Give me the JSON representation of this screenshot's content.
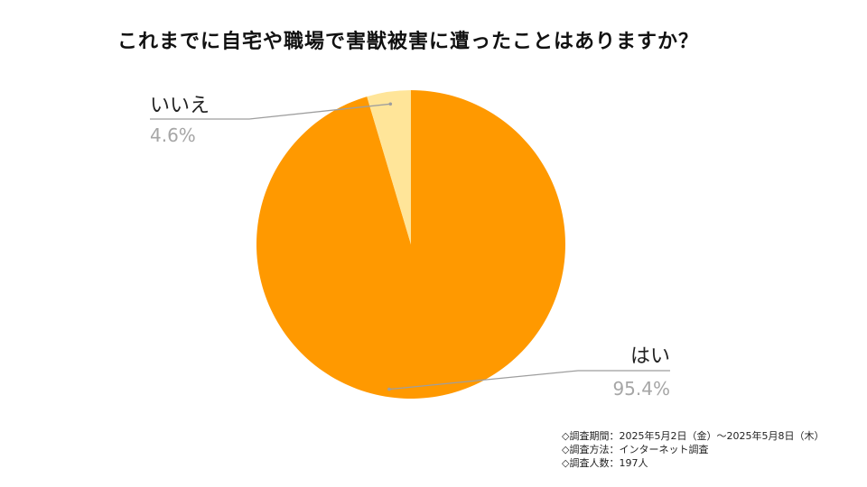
{
  "title": "これまでに自宅や職場で害獣被害に遭ったことはありますか？",
  "chart_data": {
    "type": "pie",
    "title": "これまでに自宅や職場で害獣被害に遭ったことはありますか？",
    "slices": [
      {
        "label": "はい",
        "value": 95.4,
        "value_label": "95.4%",
        "color": "#ff9900"
      },
      {
        "label": "いいえ",
        "value": 4.6,
        "value_label": "4.6%",
        "color": "#ffe599"
      }
    ]
  },
  "footnotes": [
    "◇調査期間：2025年5月2日（金）～2025年5月8日（木）",
    "◇調査方法：インターネット調査",
    "◇調査人数：197人"
  ]
}
